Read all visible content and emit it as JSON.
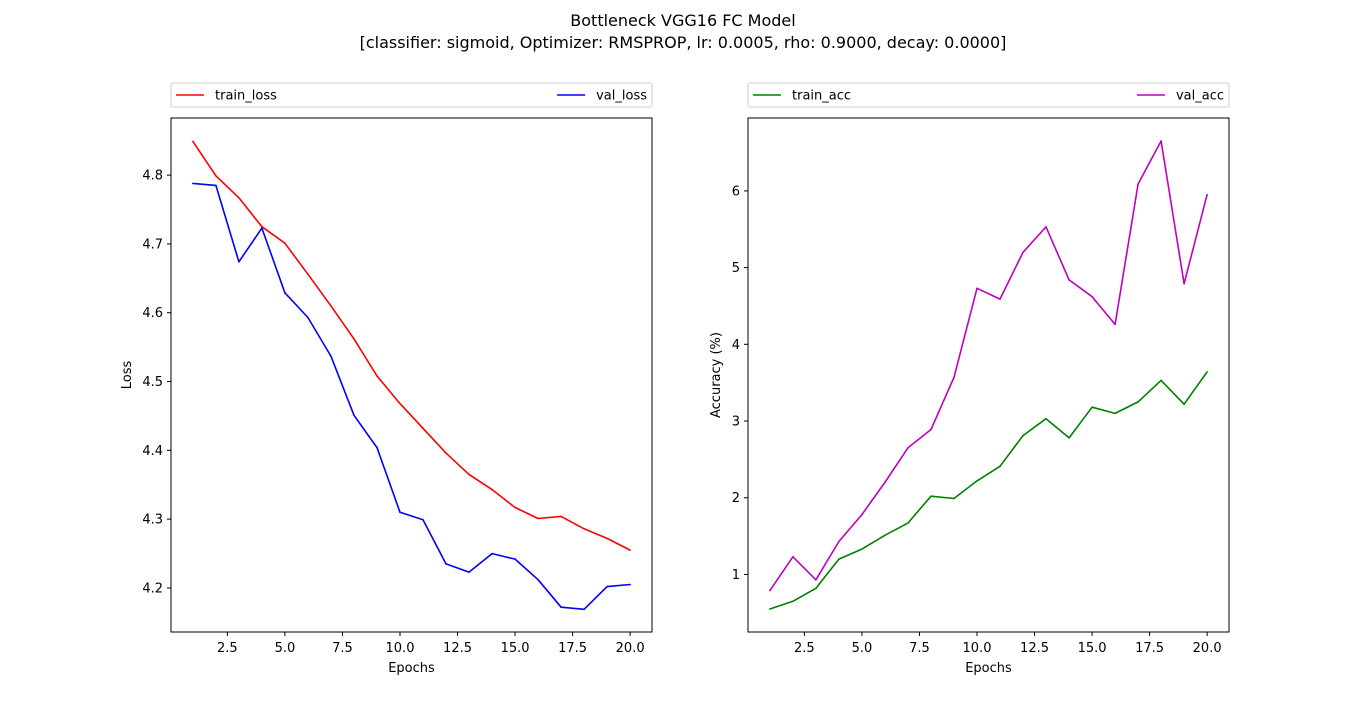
{
  "figure": {
    "title": "Bottleneck VGG16 FC Model",
    "subtitle": "[classifier: sigmoid, Optimizer: RMSPROP, lr: 0.0005, rho: 0.9000, decay: 0.0000]"
  },
  "chart_data": [
    {
      "type": "line",
      "xlabel": "Epochs",
      "ylabel": "Loss",
      "xlim": [
        0.05,
        20.95
      ],
      "ylim": [
        4.136,
        4.883
      ],
      "xticks": [
        2.5,
        5.0,
        7.5,
        10.0,
        12.5,
        15.0,
        17.5,
        20.0
      ],
      "yticks": [
        4.2,
        4.3,
        4.4,
        4.5,
        4.6,
        4.7,
        4.8
      ],
      "grid": false,
      "legend": "top, expanded across axes",
      "x": [
        1,
        2,
        3,
        4,
        5,
        6,
        7,
        8,
        9,
        10,
        11,
        12,
        13,
        14,
        15,
        16,
        17,
        18,
        19,
        20
      ],
      "series": [
        {
          "name": "train_loss",
          "color": "#ff0000",
          "values": [
            4.849,
            4.799,
            4.767,
            4.725,
            4.701,
            4.656,
            4.61,
            4.562,
            4.508,
            4.468,
            4.432,
            4.396,
            4.365,
            4.343,
            4.317,
            4.301,
            4.304,
            4.286,
            4.272,
            4.255
          ]
        },
        {
          "name": "val_loss",
          "color": "#0000ff",
          "values": [
            4.788,
            4.785,
            4.674,
            4.723,
            4.629,
            4.593,
            4.537,
            4.451,
            4.404,
            4.31,
            4.299,
            4.235,
            4.223,
            4.25,
            4.242,
            4.212,
            4.172,
            4.169,
            4.202,
            4.205
          ]
        }
      ]
    },
    {
      "type": "line",
      "xlabel": "Epochs",
      "ylabel": "Accuracy (%)",
      "xlim": [
        0.05,
        20.95
      ],
      "ylim": [
        0.25,
        6.95
      ],
      "xticks": [
        2.5,
        5.0,
        7.5,
        10.0,
        12.5,
        15.0,
        17.5,
        20.0
      ],
      "yticks": [
        1,
        2,
        3,
        4,
        5,
        6
      ],
      "grid": false,
      "legend": "top, expanded across axes",
      "x": [
        1,
        2,
        3,
        4,
        5,
        6,
        7,
        8,
        9,
        10,
        11,
        12,
        13,
        14,
        15,
        16,
        17,
        18,
        19,
        20
      ],
      "series": [
        {
          "name": "train_acc",
          "color": "#008000",
          "values": [
            0.55,
            0.65,
            0.82,
            1.2,
            1.33,
            1.51,
            1.67,
            2.02,
            1.99,
            2.22,
            2.41,
            2.81,
            3.03,
            2.78,
            3.18,
            3.1,
            3.25,
            3.53,
            3.22,
            3.64
          ]
        },
        {
          "name": "val_acc",
          "color": "#bf00bf",
          "values": [
            0.79,
            1.23,
            0.93,
            1.43,
            1.78,
            2.2,
            2.65,
            2.89,
            3.57,
            4.73,
            4.59,
            5.2,
            5.53,
            4.84,
            4.62,
            4.26,
            6.09,
            6.65,
            4.79,
            5.95
          ]
        }
      ]
    }
  ]
}
